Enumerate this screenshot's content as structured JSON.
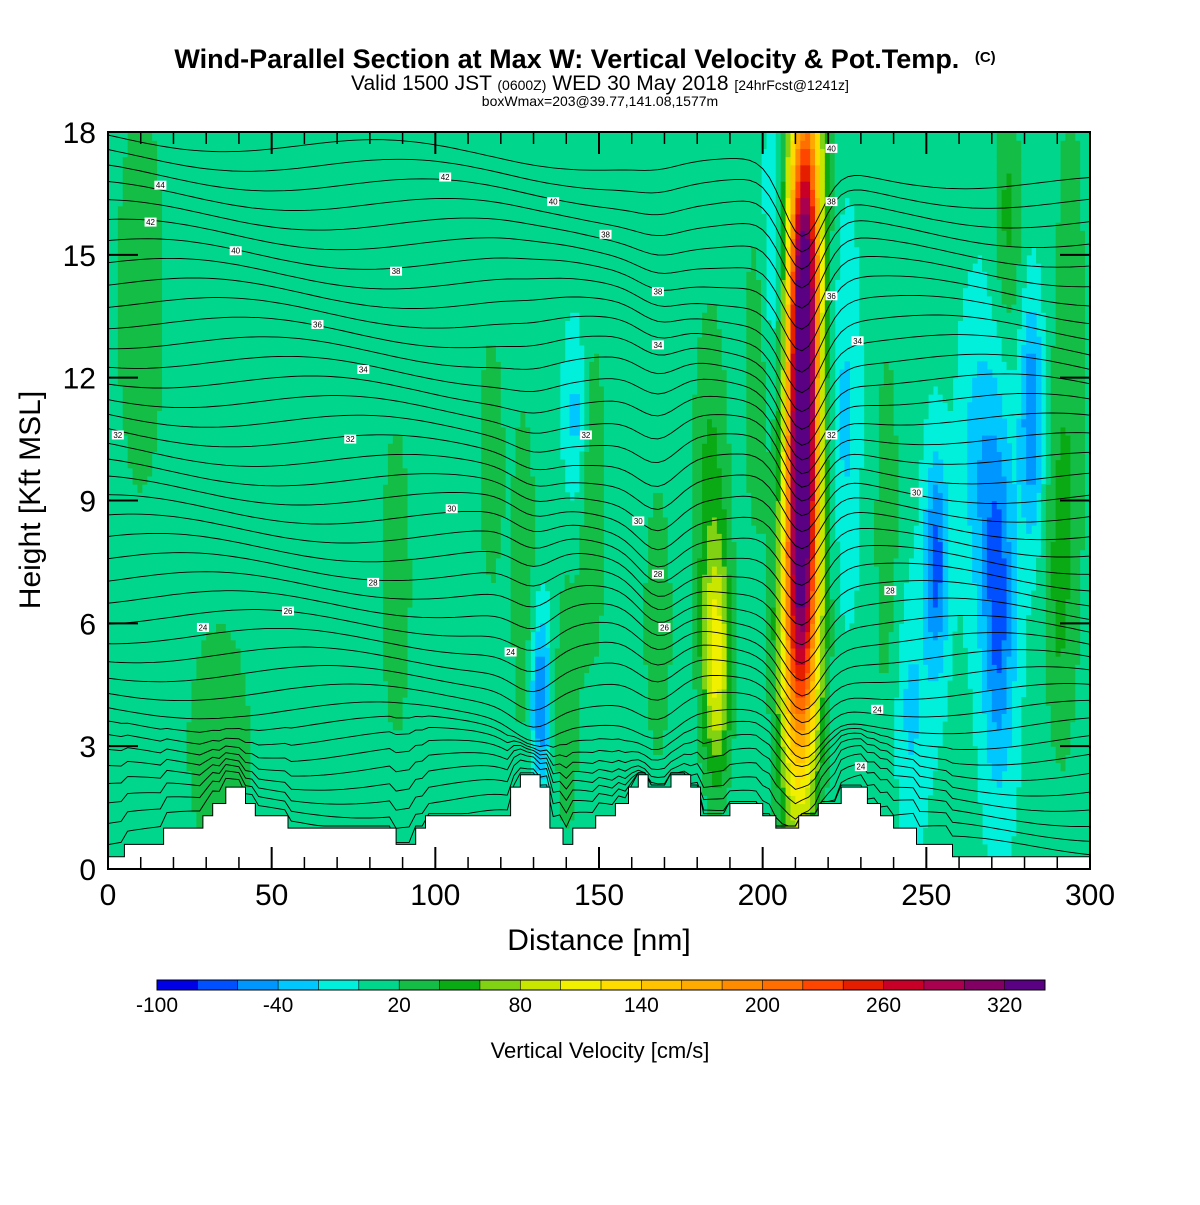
{
  "chart_data": {
    "type": "heatmap",
    "title": "Wind-Parallel Section at Max W: Vertical Velocity & Pot.Temp.",
    "title_mark": "(C)",
    "subtitle": {
      "part1": "Valid 1500 JST ",
      "part2": "(0600Z)",
      "part3": " WED 30 May 2018 ",
      "part4": "[24hrFcst@1241z]"
    },
    "box_line": "boxWmax=203@39.77,141.08,1577m",
    "xlabel": "Distance [nm]",
    "ylabel": "Height [Kft MSL]",
    "xlim": [
      0,
      300
    ],
    "ylim": [
      0,
      18
    ],
    "x_ticks": [
      "0",
      "50",
      "100",
      "150",
      "200",
      "250",
      "300"
    ],
    "y_ticks": [
      "0",
      "3",
      "6",
      "9",
      "12",
      "15",
      "18"
    ],
    "colorbar": {
      "title": "Vertical Velocity [cm/s]",
      "labels": [
        "-100",
        "-40",
        "20",
        "80",
        "140",
        "200",
        "260",
        "320"
      ],
      "levels": [
        -100,
        -80,
        -60,
        -40,
        -20,
        0,
        20,
        40,
        60,
        80,
        100,
        120,
        140,
        160,
        180,
        200,
        220,
        240,
        260,
        280,
        300,
        320,
        340
      ],
      "colors": [
        "#0000e6",
        "#0050ff",
        "#0096ff",
        "#00c8ff",
        "#00f0dc",
        "#00d78c",
        "#14be46",
        "#0aaa14",
        "#82d214",
        "#c8e600",
        "#f0f000",
        "#ffdc00",
        "#ffc300",
        "#ffaa00",
        "#ff8c00",
        "#ff6e00",
        "#ff4600",
        "#e61e00",
        "#c80028",
        "#aa0050",
        "#820064",
        "#5a0082"
      ]
    },
    "terrain_kft": [
      [
        0,
        0.3
      ],
      [
        5,
        0.3
      ],
      [
        5,
        0.6
      ],
      [
        17,
        0.6
      ],
      [
        17,
        1.0
      ],
      [
        29,
        1.0
      ],
      [
        29,
        1.3
      ],
      [
        32,
        1.3
      ],
      [
        32,
        1.6
      ],
      [
        36,
        1.6
      ],
      [
        36,
        2.0
      ],
      [
        42,
        2.0
      ],
      [
        42,
        1.6
      ],
      [
        45,
        1.6
      ],
      [
        45,
        1.3
      ],
      [
        55,
        1.3
      ],
      [
        55,
        1.0
      ],
      [
        88,
        1.0
      ],
      [
        88,
        0.6
      ],
      [
        94,
        0.6
      ],
      [
        94,
        1.0
      ],
      [
        97,
        1.0
      ],
      [
        97,
        1.3
      ],
      [
        123,
        1.3
      ],
      [
        123,
        2.0
      ],
      [
        126,
        2.0
      ],
      [
        126,
        2.3
      ],
      [
        132,
        2.3
      ],
      [
        132,
        2.0
      ],
      [
        135,
        2.0
      ],
      [
        135,
        1.0
      ],
      [
        139,
        1.0
      ],
      [
        139,
        0.6
      ],
      [
        142,
        0.6
      ],
      [
        142,
        1.0
      ],
      [
        149,
        1.0
      ],
      [
        149,
        1.3
      ],
      [
        155,
        1.3
      ],
      [
        155,
        1.6
      ],
      [
        159,
        1.6
      ],
      [
        159,
        2.0
      ],
      [
        162,
        2.0
      ],
      [
        162,
        2.3
      ],
      [
        165,
        2.3
      ],
      [
        165,
        2.0
      ],
      [
        172,
        2.0
      ],
      [
        172,
        2.3
      ],
      [
        178,
        2.3
      ],
      [
        178,
        2.0
      ],
      [
        181,
        2.0
      ],
      [
        181,
        1.3
      ],
      [
        190,
        1.3
      ],
      [
        190,
        1.6
      ],
      [
        200,
        1.6
      ],
      [
        200,
        1.3
      ],
      [
        204,
        1.3
      ],
      [
        204,
        1.0
      ],
      [
        211,
        1.0
      ],
      [
        211,
        1.3
      ],
      [
        217,
        1.3
      ],
      [
        217,
        1.6
      ],
      [
        224,
        1.6
      ],
      [
        224,
        2.0
      ],
      [
        232,
        2.0
      ],
      [
        232,
        1.6
      ],
      [
        236,
        1.6
      ],
      [
        236,
        1.3
      ],
      [
        240,
        1.3
      ],
      [
        240,
        1.0
      ],
      [
        247,
        1.0
      ],
      [
        247,
        0.6
      ],
      [
        258,
        0.6
      ],
      [
        258,
        0.3
      ],
      [
        300,
        0.3
      ]
    ],
    "theta_labels": [
      {
        "text": "44",
        "x": 16,
        "y": 16.7
      },
      {
        "text": "42",
        "x": 13,
        "y": 15.8
      },
      {
        "text": "42",
        "x": 103,
        "y": 16.9
      },
      {
        "text": "40",
        "x": 39,
        "y": 15.1
      },
      {
        "text": "40",
        "x": 136,
        "y": 16.3
      },
      {
        "text": "40",
        "x": 221,
        "y": 17.6
      },
      {
        "text": "38",
        "x": 88,
        "y": 14.6
      },
      {
        "text": "38",
        "x": 152,
        "y": 15.5
      },
      {
        "text": "38",
        "x": 168,
        "y": 14.1
      },
      {
        "text": "38",
        "x": 221,
        "y": 16.3
      },
      {
        "text": "36",
        "x": 64,
        "y": 13.3
      },
      {
        "text": "36",
        "x": 221,
        "y": 14.0
      },
      {
        "text": "34",
        "x": 78,
        "y": 12.2
      },
      {
        "text": "34",
        "x": 168,
        "y": 12.8
      },
      {
        "text": "34",
        "x": 229,
        "y": 12.9
      },
      {
        "text": "32",
        "x": 3,
        "y": 10.6
      },
      {
        "text": "32",
        "x": 74,
        "y": 10.5
      },
      {
        "text": "32",
        "x": 146,
        "y": 10.6
      },
      {
        "text": "32",
        "x": 221,
        "y": 10.6
      },
      {
        "text": "30",
        "x": 105,
        "y": 8.8
      },
      {
        "text": "30",
        "x": 162,
        "y": 8.5
      },
      {
        "text": "30",
        "x": 247,
        "y": 9.2
      },
      {
        "text": "28",
        "x": 81,
        "y": 7.0
      },
      {
        "text": "28",
        "x": 168,
        "y": 7.2
      },
      {
        "text": "28",
        "x": 239,
        "y": 6.8
      },
      {
        "text": "26",
        "x": 55,
        "y": 6.3
      },
      {
        "text": "26",
        "x": 170,
        "y": 5.9
      },
      {
        "text": "24",
        "x": 29,
        "y": 5.9
      },
      {
        "text": "24",
        "x": 123,
        "y": 5.3
      },
      {
        "text": "24",
        "x": 235,
        "y": 3.9
      },
      {
        "text": "24",
        "x": 230,
        "y": 2.5
      }
    ]
  }
}
